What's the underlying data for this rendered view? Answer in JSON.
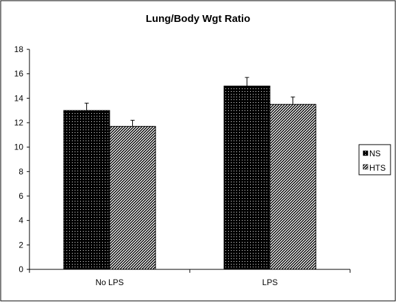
{
  "chart_data": {
    "type": "bar",
    "title": "Lung/Body Wgt Ratio",
    "xlabel": "",
    "ylabel": "",
    "categories": [
      "No LPS",
      "LPS"
    ],
    "series": [
      {
        "name": "NS",
        "values": [
          13.0,
          15.0
        ],
        "errors": [
          0.6,
          0.7
        ],
        "pattern": "dots-on-black"
      },
      {
        "name": "HTS",
        "values": [
          11.7,
          13.5
        ],
        "errors": [
          0.5,
          0.6
        ],
        "pattern": "diagonal-hatch"
      }
    ],
    "ylim": [
      0,
      18
    ],
    "yticks": [
      0,
      2,
      4,
      6,
      8,
      10,
      12,
      14,
      16,
      18
    ],
    "ytick_labels": [
      "0",
      "2",
      "4",
      "6",
      "8",
      "10",
      "12",
      "14",
      "16",
      "18"
    ],
    "grid": false,
    "legend": "right",
    "error_bars": true
  }
}
